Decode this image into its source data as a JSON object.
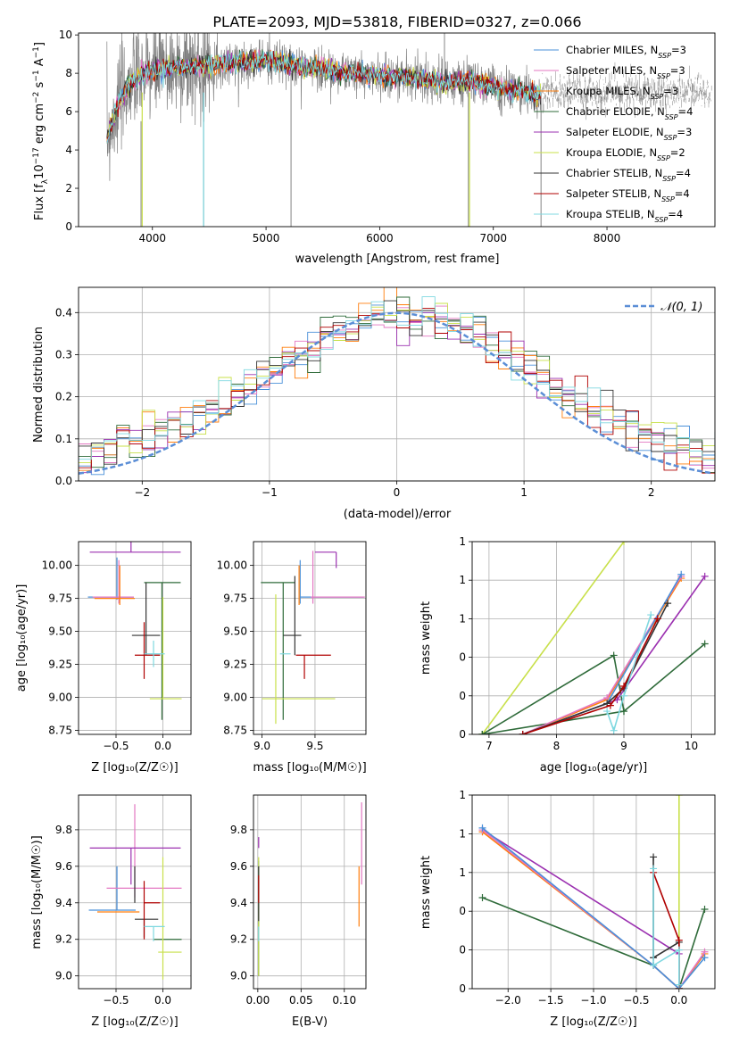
{
  "chart_data": [
    {
      "id": "spectrum",
      "type": "line",
      "title": "PLATE=2093, MJD=53818, FIBERID=0327, z=0.066",
      "xlabel": "wavelength [Angstrom, rest frame]",
      "ylabel_parts": [
        "Flux [f",
        "λ",
        "10",
        "−17",
        " erg cm",
        "−2",
        " s",
        "−1",
        " A",
        "−1",
        "]"
      ],
      "xlim": [
        3350,
        8950
      ],
      "ylim": [
        0,
        10.1
      ],
      "xticks": [
        4000,
        5000,
        6000,
        7000,
        8000
      ],
      "yticks": [
        0,
        2,
        4,
        6,
        8,
        10
      ],
      "grid": false,
      "legend_position": "top-right",
      "legend": [
        {
          "label": "Chabrier MILES, N",
          "sub": "SSP",
          "suffix": "=3",
          "color": "#4a90d9"
        },
        {
          "label": "Salpeter MILES, N",
          "sub": "SSP",
          "suffix": "=3",
          "color": "#e377c2"
        },
        {
          "label": "Kroupa MILES, N",
          "sub": "SSP",
          "suffix": "=3",
          "color": "#ff7f0e"
        },
        {
          "label": "Chabrier ELODIE, N",
          "sub": "SSP",
          "suffix": "=4",
          "color": "#2f6b3a"
        },
        {
          "label": "Salpeter ELODIE, N",
          "sub": "SSP",
          "suffix": "=3",
          "color": "#9b30b0"
        },
        {
          "label": "Kroupa ELODIE, N",
          "sub": "SSP",
          "suffix": "=2",
          "color": "#c8e04a"
        },
        {
          "label": "Chabrier STELIB, N",
          "sub": "SSP",
          "suffix": "=4",
          "color": "#333333"
        },
        {
          "label": "Salpeter STELIB, N",
          "sub": "SSP",
          "suffix": "=4",
          "color": "#b00000"
        },
        {
          "label": "Kroupa STELIB, N",
          "sub": "SSP",
          "suffix": "=4",
          "color": "#7fd8e0"
        }
      ],
      "data_color": "#808080",
      "continuum": {
        "x": [
          3600,
          3700,
          3800,
          3900,
          4000,
          4200,
          4400,
          4600,
          4800,
          5000,
          5200,
          5400,
          5600,
          5800,
          6000,
          6200,
          6400,
          6600,
          6800,
          7000,
          7200,
          7400
        ],
        "y": [
          4.6,
          6.4,
          7.5,
          7.9,
          8.1,
          8.3,
          8.4,
          8.5,
          8.6,
          8.7,
          8.4,
          8.3,
          8.1,
          8.0,
          7.9,
          7.8,
          7.7,
          7.5,
          7.6,
          7.3,
          7.1,
          6.9
        ]
      }
    },
    {
      "id": "residuals",
      "type": "step",
      "xlabel": "(data-model)/error",
      "ylabel": "Normed distribution",
      "xlim": [
        -2.5,
        2.5
      ],
      "ylim": [
        0,
        0.46
      ],
      "xticks": [
        -2,
        -1,
        0,
        1,
        2
      ],
      "yticks": [
        0.0,
        0.1,
        0.2,
        0.3,
        0.4
      ],
      "grid": true,
      "legend_position": "top-right",
      "gaussian_label": "𝒩(0, 1)",
      "gaussian_color": "#5b8ed6",
      "bin_width": 0.1
    },
    {
      "id": "age_vs_Z",
      "type": "errorbar",
      "xlabel": "Z [log10(Z/Z☉)]",
      "ylabel": "age  [log10(age/yr)]",
      "xlim": [
        -0.9,
        0.3
      ],
      "ylim": [
        8.72,
        10.18
      ],
      "xticks": [
        -0.5,
        0.0
      ],
      "yticks": [
        8.75,
        9.0,
        9.25,
        9.5,
        9.75,
        10.0
      ],
      "points": [
        {
          "x": -0.49,
          "y": 9.76,
          "xerr": [
            0.31,
            0.18
          ],
          "yerr": [
            0.02,
            0.3
          ],
          "color": "#4a90d9"
        },
        {
          "x": -0.47,
          "y": 9.76,
          "xerr": [
            0.28,
            0.16
          ],
          "yerr": [
            0.05,
            0.28
          ],
          "color": "#e377c2"
        },
        {
          "x": -0.46,
          "y": 9.75,
          "xerr": [
            0.27,
            0.16
          ],
          "yerr": [
            0.05,
            0.25
          ],
          "color": "#ff7f0e"
        },
        {
          "x": -0.01,
          "y": 9.87,
          "xerr": [
            0.19,
            0.2
          ],
          "yerr": [
            1.04,
            0.0
          ],
          "color": "#2f6b3a"
        },
        {
          "x": -0.34,
          "y": 10.1,
          "xerr": [
            0.44,
            0.53
          ],
          "yerr": [
            0.0,
            0.12
          ],
          "color": "#9b30b0"
        },
        {
          "x": 0.0,
          "y": 8.99,
          "xerr": [
            0.14,
            0.2
          ],
          "yerr": [
            0.0,
            0.77
          ],
          "color": "#c8e04a"
        },
        {
          "x": -0.18,
          "y": 9.47,
          "xerr": [
            0.15,
            0.15
          ],
          "yerr": [
            0.15,
            0.4
          ],
          "color": "#333333"
        },
        {
          "x": -0.2,
          "y": 9.32,
          "xerr": [
            0.1,
            0.17
          ],
          "yerr": [
            0.18,
            0.25
          ],
          "color": "#b00000"
        },
        {
          "x": -0.1,
          "y": 9.33,
          "xerr": [
            0.1,
            0.12
          ],
          "yerr": [
            0.1,
            0.1
          ],
          "color": "#7fd8e0"
        }
      ]
    },
    {
      "id": "age_vs_mass",
      "type": "errorbar",
      "xlabel": "mass [log10(M/M☉)]",
      "ylabel": "",
      "xlim": [
        8.92,
        9.98
      ],
      "ylim": [
        8.72,
        10.18
      ],
      "xticks": [
        9.0,
        9.5
      ],
      "yticks": [
        8.75,
        9.0,
        9.25,
        9.5,
        9.75,
        10.0
      ],
      "points": [
        {
          "x": 9.36,
          "y": 9.76,
          "xerr": [
            0.0,
            0.6
          ],
          "yerr": [
            0.05,
            0.28
          ],
          "color": "#4a90d9"
        },
        {
          "x": 9.48,
          "y": 9.76,
          "xerr": [
            0.02,
            0.49
          ],
          "yerr": [
            0.05,
            0.35
          ],
          "color": "#e377c2"
        },
        {
          "x": 9.35,
          "y": 9.75,
          "xerr": [
            0.0,
            0.0
          ],
          "yerr": [
            0.05,
            0.25
          ],
          "color": "#ff7f0e"
        },
        {
          "x": 9.2,
          "y": 9.87,
          "xerr": [
            0.21,
            0.11
          ],
          "yerr": [
            1.04,
            0.0
          ],
          "color": "#2f6b3a"
        },
        {
          "x": 9.7,
          "y": 10.1,
          "xerr": [
            0.2,
            0.0
          ],
          "yerr": [
            0.12,
            0.0
          ],
          "color": "#9b30b0"
        },
        {
          "x": 9.13,
          "y": 8.99,
          "xerr": [
            0.13,
            0.56
          ],
          "yerr": [
            0.19,
            0.79
          ],
          "color": "#c8e04a"
        },
        {
          "x": 9.31,
          "y": 9.47,
          "xerr": [
            0.11,
            0.06
          ],
          "yerr": [
            0.15,
            0.45
          ],
          "color": "#333333"
        },
        {
          "x": 9.4,
          "y": 9.32,
          "xerr": [
            0.08,
            0.25
          ],
          "yerr": [
            0.18,
            0.0
          ],
          "color": "#b00000"
        },
        {
          "x": 9.27,
          "y": 9.33,
          "xerr": [
            0.1,
            0.0
          ],
          "yerr": [
            0.0,
            0.0
          ],
          "color": "#7fd8e0"
        }
      ]
    },
    {
      "id": "weight_vs_age",
      "type": "line",
      "xlabel": "age  [log10(age/yr)]",
      "ylabel": "mass weight",
      "xlim": [
        6.75,
        10.35
      ],
      "ylim": [
        0,
        1.0
      ],
      "xticks": [
        7,
        8,
        9,
        10
      ],
      "yticks": [
        0.0,
        0.2,
        0.4,
        0.6,
        0.8,
        1.0
      ],
      "grid": true,
      "series": [
        {
          "color": "#c8e04a",
          "x": [
            6.9,
            9.0
          ],
          "y": [
            0.0,
            1.0
          ]
        },
        {
          "color": "#2f6b3a",
          "x": [
            6.9,
            8.85,
            9.0,
            10.2
          ],
          "y": [
            0.0,
            0.41,
            0.12,
            0.47
          ]
        },
        {
          "color": "#2f6b3a",
          "x": [
            6.9,
            9.0
          ],
          "y": [
            0.0,
            0.12
          ]
        },
        {
          "color": "#9b30b0",
          "x": [
            7.5,
            8.9,
            10.2
          ],
          "y": [
            0.0,
            0.18,
            0.82
          ]
        },
        {
          "color": "#ff7f0e",
          "x": [
            7.5,
            8.75,
            9.85
          ],
          "y": [
            0.0,
            0.18,
            0.81
          ]
        },
        {
          "color": "#e377c2",
          "x": [
            7.5,
            8.75,
            9.85
          ],
          "y": [
            0.0,
            0.19,
            0.82
          ]
        },
        {
          "color": "#4a90d9",
          "x": [
            7.5,
            8.75,
            9.85
          ],
          "y": [
            0.0,
            0.16,
            0.83
          ]
        },
        {
          "color": "#333333",
          "x": [
            7.5,
            8.75,
            9.0,
            9.65
          ],
          "y": [
            0.0,
            0.16,
            0.24,
            0.68
          ]
        },
        {
          "color": "#b00000",
          "x": [
            7.5,
            8.8,
            9.0,
            9.5
          ],
          "y": [
            0.0,
            0.15,
            0.25,
            0.6
          ]
        },
        {
          "color": "#7fd8e0",
          "x": [
            8.75,
            8.85,
            9.0,
            9.4
          ],
          "y": [
            0.12,
            0.02,
            0.2,
            0.62
          ]
        }
      ]
    },
    {
      "id": "mass_vs_Z",
      "type": "errorbar",
      "xlabel": "Z [log10(Z/Z☉)]",
      "ylabel": "mass [log10(M/M☉)]",
      "xlim": [
        -0.9,
        0.3
      ],
      "ylim": [
        8.93,
        9.99
      ],
      "xticks": [
        -0.5,
        0.0
      ],
      "yticks": [
        9.0,
        9.2,
        9.4,
        9.6,
        9.8
      ],
      "points": [
        {
          "x": -0.49,
          "y": 9.36,
          "xerr": [
            0.3,
            0.2
          ],
          "yerr": [
            0.0,
            0.24
          ],
          "color": "#4a90d9"
        },
        {
          "x": -0.3,
          "y": 9.48,
          "xerr": [
            0.3,
            0.5
          ],
          "yerr": [
            0.05,
            0.46
          ],
          "color": "#e377c2"
        },
        {
          "x": -0.4,
          "y": 9.35,
          "xerr": [
            0.3,
            0.15
          ],
          "yerr": [
            0.0,
            0.0
          ],
          "color": "#ff7f0e"
        },
        {
          "x": 0.0,
          "y": 9.2,
          "xerr": [
            0.1,
            0.2
          ],
          "yerr": [
            0.0,
            0.0
          ],
          "color": "#2f6b3a"
        },
        {
          "x": -0.34,
          "y": 9.7,
          "xerr": [
            0.44,
            0.53
          ],
          "yerr": [
            0.2,
            0.0
          ],
          "color": "#9b30b0"
        },
        {
          "x": 0.0,
          "y": 9.13,
          "xerr": [
            0.05,
            0.2
          ],
          "yerr": [
            0.15,
            0.52
          ],
          "color": "#c8e04a"
        },
        {
          "x": -0.2,
          "y": 9.31,
          "xerr": [
            0.1,
            0.15
          ],
          "yerr": [
            0.1,
            0.0
          ],
          "color": "#333333"
        },
        {
          "x": -0.2,
          "y": 9.4,
          "xerr": [
            0.0,
            0.17
          ],
          "yerr": [
            0.2,
            0.12
          ],
          "color": "#b00000"
        },
        {
          "x": -0.1,
          "y": 9.27,
          "xerr": [
            0.1,
            0.12
          ],
          "yerr": [
            0.08,
            0.0
          ],
          "color": "#7fd8e0"
        },
        {
          "x": -0.3,
          "y": 9.4,
          "xerr": [
            0.0,
            0.0
          ],
          "yerr": [
            0.0,
            0.2
          ],
          "color": "#333333"
        }
      ]
    },
    {
      "id": "mass_vs_ebv",
      "type": "errorbar",
      "xlabel": "E(B-V)",
      "ylabel": "",
      "xlim": [
        -0.005,
        0.125
      ],
      "ylim": [
        8.93,
        9.99
      ],
      "xticks": [
        0.0,
        0.05,
        0.1
      ],
      "yticks": [
        9.0,
        9.2,
        9.4,
        9.6,
        9.8
      ],
      "points": [
        {
          "x": 0.001,
          "y": 9.58,
          "yerr": [
            0.3,
            0.05
          ],
          "color": "#4a90d9"
        },
        {
          "x": 0.12,
          "y": 9.5,
          "yerr": [
            0.0,
            0.45
          ],
          "color": "#e377c2"
        },
        {
          "x": 0.117,
          "y": 9.4,
          "yerr": [
            0.13,
            0.2
          ],
          "color": "#ff7f0e"
        },
        {
          "x": 0.001,
          "y": 9.2,
          "yerr": [
            0.2,
            0.4
          ],
          "color": "#2f6b3a"
        },
        {
          "x": 0.001,
          "y": 9.7,
          "yerr": [
            0.0,
            0.06
          ],
          "color": "#9b30b0"
        },
        {
          "x": 0.001,
          "y": 9.1,
          "yerr": [
            0.1,
            0.55
          ],
          "color": "#c8e04a"
        },
        {
          "x": 0.001,
          "y": 9.3,
          "yerr": [
            0.0,
            0.3
          ],
          "color": "#333333"
        },
        {
          "x": 0.001,
          "y": 9.4,
          "yerr": [
            0.0,
            0.15
          ],
          "color": "#b00000"
        },
        {
          "x": 0.001,
          "y": 9.27,
          "yerr": [
            0.08,
            0.0
          ],
          "color": "#7fd8e0"
        }
      ]
    },
    {
      "id": "weight_vs_Z",
      "type": "line",
      "xlabel": "Z [log10(Z/Z☉)]",
      "ylabel": "mass weight",
      "xlim": [
        -2.42,
        0.42
      ],
      "ylim": [
        0,
        1.0
      ],
      "xticks": [
        -2.0,
        -1.5,
        -1.0,
        -0.5,
        0.0
      ],
      "yticks": [
        0.0,
        0.2,
        0.4,
        0.6,
        0.8,
        1.0
      ],
      "grid": true,
      "series": [
        {
          "color": "#c8e04a",
          "x": [
            0.0,
            0.0
          ],
          "y": [
            0.0,
            1.0
          ]
        },
        {
          "color": "#2f6b3a",
          "x": [
            -2.3,
            -0.3,
            0.0,
            0.3
          ],
          "y": [
            0.47,
            0.12,
            0.0,
            0.41
          ]
        },
        {
          "color": "#9b30b0",
          "x": [
            -2.3,
            0.0,
            0.0
          ],
          "y": [
            0.82,
            0.18,
            0.0
          ]
        },
        {
          "color": "#ff7f0e",
          "x": [
            -2.3,
            -0.3,
            0.0,
            0.3
          ],
          "y": [
            0.81,
            0.12,
            0.0,
            0.18
          ]
        },
        {
          "color": "#e377c2",
          "x": [
            -2.3,
            -0.3,
            0.0,
            0.3
          ],
          "y": [
            0.82,
            0.12,
            0.0,
            0.19
          ]
        },
        {
          "color": "#4a90d9",
          "x": [
            -2.3,
            -0.3,
            0.0,
            0.3
          ],
          "y": [
            0.83,
            0.12,
            0.0,
            0.16
          ]
        },
        {
          "color": "#333333",
          "x": [
            -0.3,
            -0.3,
            0.0,
            0.0
          ],
          "y": [
            0.68,
            0.16,
            0.24,
            0.0
          ]
        },
        {
          "color": "#b00000",
          "x": [
            -0.3,
            0.0,
            0.0
          ],
          "y": [
            0.6,
            0.25,
            0.0
          ]
        },
        {
          "color": "#7fd8e0",
          "x": [
            -0.3,
            -0.3,
            0.0,
            0.0
          ],
          "y": [
            0.62,
            0.12,
            0.2,
            0.02
          ]
        }
      ]
    }
  ]
}
